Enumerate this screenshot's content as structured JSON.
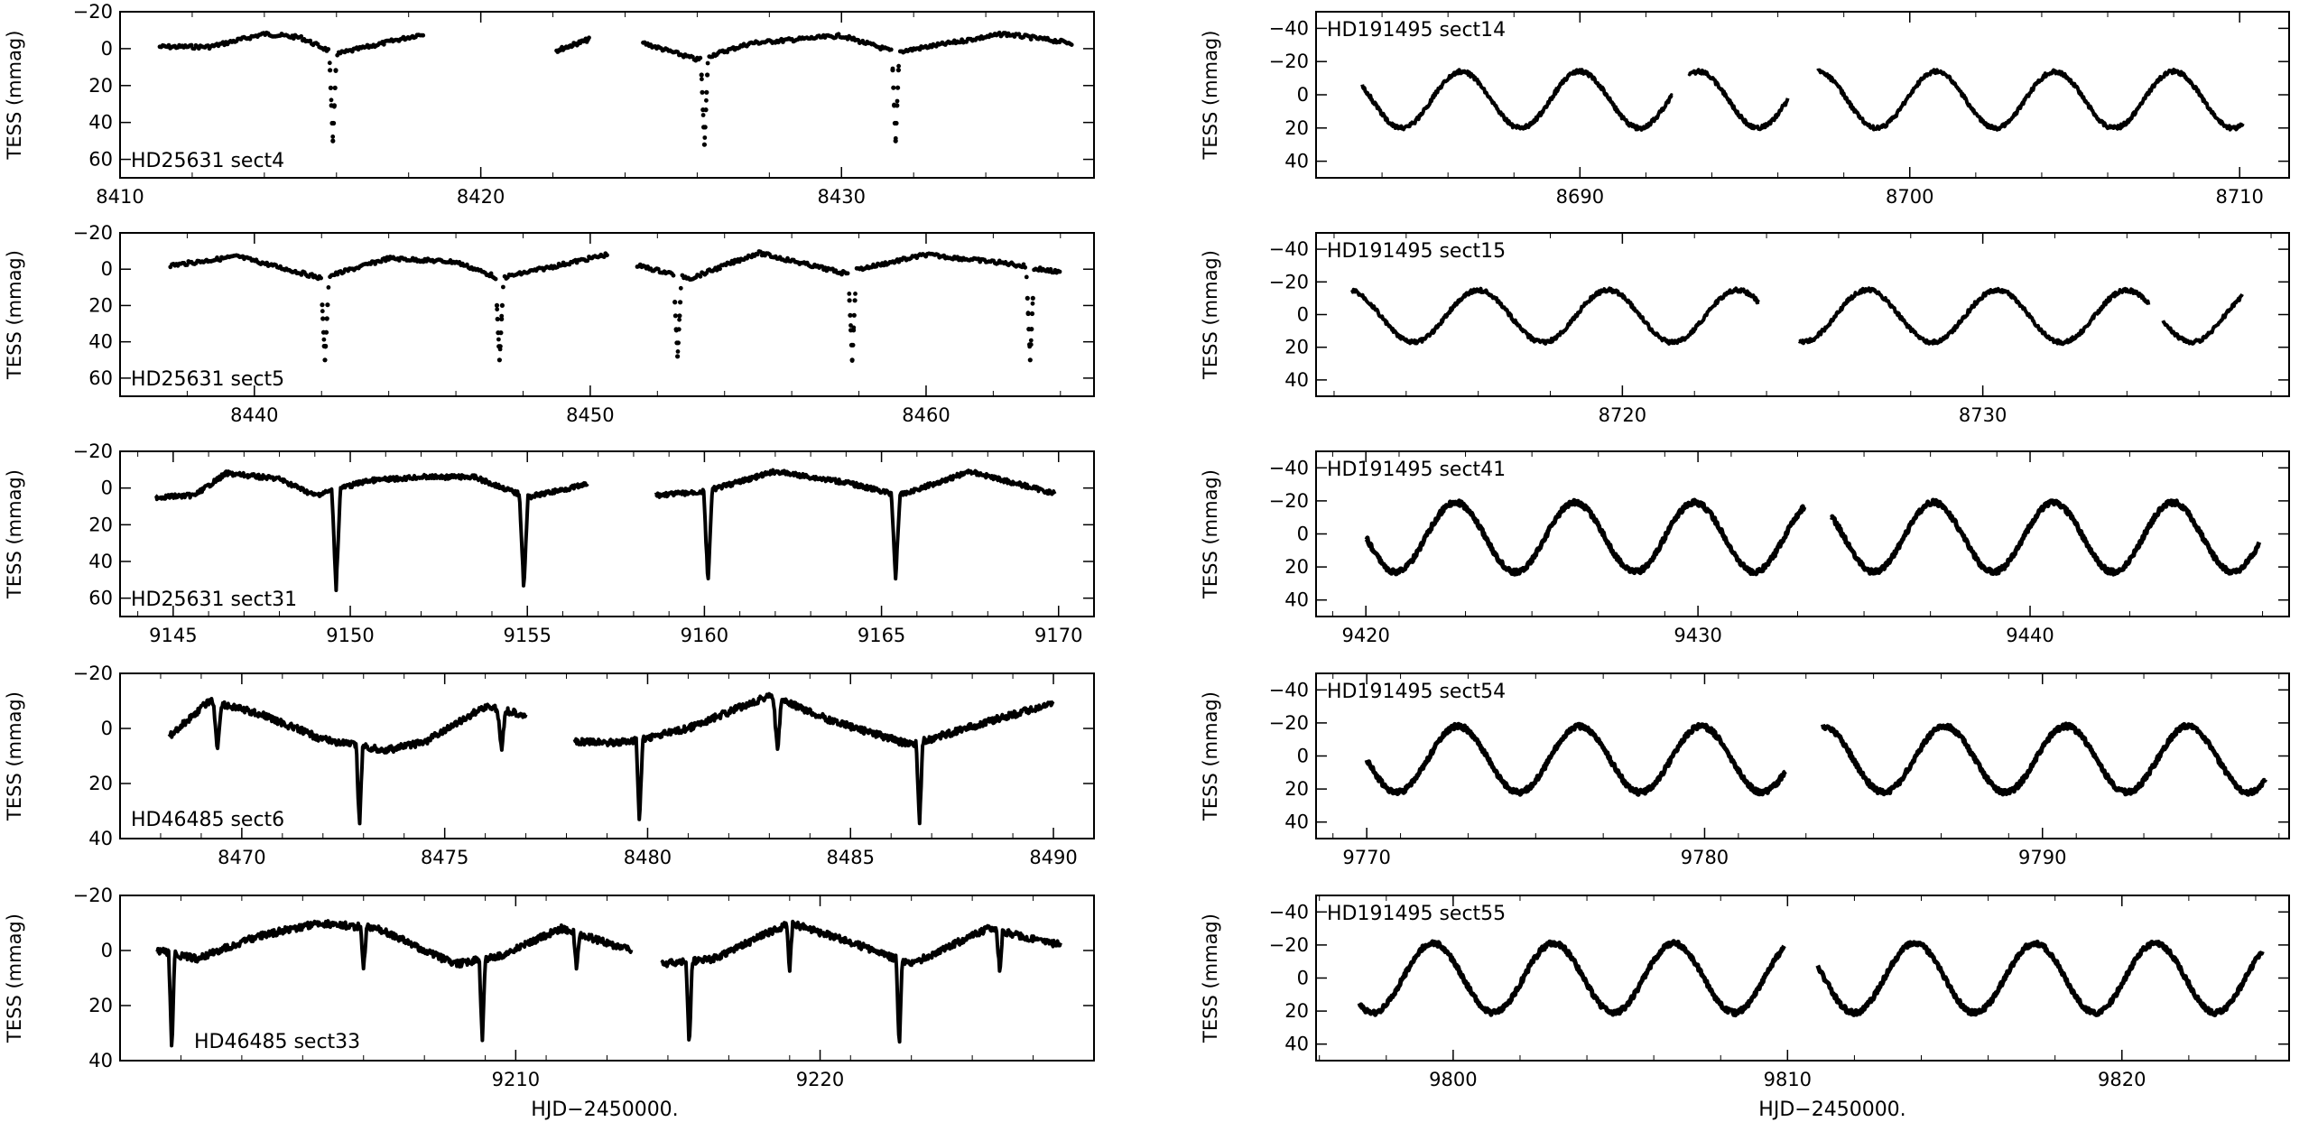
{
  "xlabel": "HJD−2450000.",
  "chart_data": [
    {
      "type": "scatter",
      "title": "HD25631 sect4",
      "ylabel": "TESS (mmag)",
      "xlim": [
        8410,
        8437
      ],
      "ylim": [
        70,
        -20
      ],
      "xticks": [
        8410,
        8420,
        8430
      ],
      "yticks": [
        -20,
        0,
        20,
        40,
        60
      ],
      "segments": [
        [
          8411.1,
          8418.4
        ],
        [
          8422.1,
          8423.0
        ],
        [
          8424.5,
          8436.4
        ]
      ],
      "eclipses": [
        [
          8415.9,
          50,
          0.1
        ],
        [
          8426.2,
          52,
          0.1
        ],
        [
          8431.5,
          50,
          0.1
        ]
      ],
      "baseline": [
        [
          8411,
          -1
        ],
        [
          8412.5,
          -1
        ],
        [
          8414,
          -8
        ],
        [
          8415,
          -6
        ],
        [
          8416,
          3
        ],
        [
          8418.4,
          -8
        ],
        [
          8422.1,
          1
        ],
        [
          8423,
          -5
        ],
        [
          8424.5,
          -3
        ],
        [
          8426,
          6
        ],
        [
          8427.5,
          -3
        ],
        [
          8430,
          -7
        ],
        [
          8431.5,
          2
        ],
        [
          8434.5,
          -8
        ],
        [
          8436.4,
          -3
        ]
      ],
      "style": "dots"
    },
    {
      "type": "scatter",
      "title": "HD25631 sect5",
      "ylabel": "TESS (mmag)",
      "xlim": [
        8436,
        8465
      ],
      "ylim": [
        70,
        -20
      ],
      "xticks": [
        8440,
        8450,
        8460
      ],
      "yticks": [
        -20,
        0,
        20,
        40,
        60
      ],
      "segments": [
        [
          8437.5,
          8450.5
        ],
        [
          8451.4,
          8464
        ]
      ],
      "eclipses": [
        [
          8442.1,
          50,
          0.12
        ],
        [
          8447.3,
          50,
          0.12
        ],
        [
          8452.6,
          48,
          0.12
        ],
        [
          8457.8,
          50,
          0.12
        ],
        [
          8463.1,
          50,
          0.12
        ]
      ],
      "baseline": [
        [
          8437.5,
          -2
        ],
        [
          8439.5,
          -7
        ],
        [
          8442,
          5
        ],
        [
          8444,
          -6
        ],
        [
          8446,
          -4
        ],
        [
          8447.3,
          5
        ],
        [
          8450.5,
          -8
        ],
        [
          8451.4,
          -2
        ],
        [
          8453,
          5
        ],
        [
          8455,
          -9
        ],
        [
          8457.5,
          2
        ],
        [
          8460,
          -8
        ],
        [
          8462.5,
          -3
        ],
        [
          8464,
          2
        ]
      ],
      "style": "dots"
    },
    {
      "type": "line",
      "title": "HD25631 sect31",
      "ylabel": "TESS (mmag)",
      "xlim": [
        9143.5,
        9171
      ],
      "ylim": [
        70,
        -20
      ],
      "xticks": [
        9145,
        9150,
        9155,
        9160,
        9165,
        9170
      ],
      "yticks": [
        -20,
        0,
        20,
        40,
        60
      ],
      "segments": [
        [
          9144.5,
          9156.7
        ],
        [
          9158.6,
          9169.9
        ]
      ],
      "eclipses": [
        [
          9149.6,
          55,
          0.12
        ],
        [
          9154.9,
          55,
          0.12
        ],
        [
          9160.1,
          52,
          0.12
        ],
        [
          9165.4,
          50,
          0.12
        ]
      ],
      "baseline": [
        [
          9144.5,
          5
        ],
        [
          9145.6,
          4
        ],
        [
          9146.5,
          -8
        ],
        [
          9148,
          -5
        ],
        [
          9149,
          4
        ],
        [
          9150.5,
          -4
        ],
        [
          9152,
          -6
        ],
        [
          9153.5,
          -6
        ],
        [
          9155,
          5
        ],
        [
          9156.7,
          -2
        ],
        [
          9158.6,
          4
        ],
        [
          9160,
          2
        ],
        [
          9162,
          -9
        ],
        [
          9164,
          -3
        ],
        [
          9165.5,
          4
        ],
        [
          9167.5,
          -9
        ],
        [
          9169.9,
          3
        ]
      ],
      "style": "line"
    },
    {
      "type": "line",
      "title": "HD46485 sect6",
      "ylabel": "TESS (mmag)",
      "xlim": [
        8467,
        8491
      ],
      "ylim": [
        40,
        -20
      ],
      "xticks": [
        8470,
        8475,
        8480,
        8485,
        8490
      ],
      "yticks": [
        -20,
        0,
        20,
        40
      ],
      "segments": [
        [
          8468.2,
          8477.0
        ],
        [
          8478.2,
          8490.0
        ]
      ],
      "eclipses": [
        [
          8472.9,
          36,
          0.08
        ],
        [
          8479.8,
          35,
          0.08
        ],
        [
          8486.7,
          35,
          0.08
        ]
      ],
      "baseline": [
        [
          8468.2,
          3
        ],
        [
          8469.2,
          -10
        ],
        [
          8470.5,
          -5
        ],
        [
          8472,
          4
        ],
        [
          8473.5,
          8
        ],
        [
          8474.5,
          5
        ],
        [
          8476,
          -8
        ],
        [
          8477,
          -5
        ],
        [
          8478.2,
          5
        ],
        [
          8479.5,
          5
        ],
        [
          8481,
          0
        ],
        [
          8483,
          -12
        ],
        [
          8484.5,
          -3
        ],
        [
          8486.5,
          6
        ],
        [
          8488.5,
          -3
        ],
        [
          8490,
          -9
        ]
      ],
      "dips": [
        [
          8469.4,
          8,
          0.1
        ],
        [
          8476.4,
          8,
          0.1
        ],
        [
          8483.2,
          9,
          0.1
        ]
      ],
      "style": "line"
    },
    {
      "type": "line",
      "title": "HD46485 sect33",
      "ylabel": "TESS (mmag)",
      "xlim": [
        9197,
        9229
      ],
      "ylim": [
        40,
        -20
      ],
      "xticks": [
        9210,
        9220
      ],
      "yticks": [
        -20,
        0,
        20,
        40
      ],
      "segments": [
        [
          9198.2,
          9213.8
        ],
        [
          9214.8,
          9227.9
        ]
      ],
      "eclipses": [
        [
          9198.7,
          36,
          0.1
        ],
        [
          9208.9,
          34,
          0.1
        ],
        [
          9215.7,
          36,
          0.1
        ],
        [
          9222.6,
          36,
          0.1
        ]
      ],
      "baseline": [
        [
          9198.2,
          0
        ],
        [
          9199.5,
          3
        ],
        [
          9201.5,
          -5
        ],
        [
          9203.5,
          -10
        ],
        [
          9205.5,
          -8
        ],
        [
          9207,
          0
        ],
        [
          9208,
          5
        ],
        [
          9209.5,
          2
        ],
        [
          9211.5,
          -8
        ],
        [
          9213.8,
          0
        ],
        [
          9214.8,
          5
        ],
        [
          9216.5,
          3
        ],
        [
          9219,
          -10
        ],
        [
          9221,
          -3
        ],
        [
          9223,
          5
        ],
        [
          9225.5,
          -8
        ],
        [
          9227.9,
          -2
        ]
      ],
      "dips": [
        [
          9205.0,
          8,
          0.1
        ],
        [
          9212.0,
          8,
          0.1
        ],
        [
          9219.0,
          8,
          0.1
        ],
        [
          9225.9,
          8,
          0.1
        ]
      ],
      "style": "line"
    },
    {
      "type": "line",
      "title": "HD191495 sect14",
      "ylabel": "TESS (mmag)",
      "xlim": [
        8682,
        8711.5
      ],
      "ylim": [
        50,
        -50
      ],
      "xticks": [
        8690,
        8700,
        8710
      ],
      "yticks": [
        -40,
        -20,
        0,
        20,
        40
      ],
      "segments": [
        [
          8683.4,
          8692.8
        ],
        [
          8693.3,
          8696.3
        ],
        [
          8697.2,
          8710.1
        ]
      ],
      "sine": {
        "period": 3.6,
        "amplitude": 17,
        "offset": 3,
        "t0": 8684.6
      },
      "style": "line"
    },
    {
      "type": "line",
      "title": "HD191495 sect15",
      "ylabel": "TESS (mmag)",
      "xlim": [
        8711.5,
        8738.5
      ],
      "ylim": [
        50,
        -50
      ],
      "xticks": [
        8720,
        8730
      ],
      "yticks": [
        -40,
        -20,
        0,
        20,
        40
      ],
      "segments": [
        [
          8712.5,
          8723.8
        ],
        [
          8724.9,
          8734.6
        ],
        [
          8735.0,
          8737.2
        ]
      ],
      "sine": {
        "period": 3.6,
        "amplitude": 16,
        "offset": 1,
        "t0": 8714.2
      },
      "style": "line"
    },
    {
      "type": "line",
      "title": "HD191495 sect41",
      "ylabel": "TESS (mmag)",
      "xlim": [
        9418.5,
        9447.8
      ],
      "ylim": [
        50,
        -50
      ],
      "xticks": [
        9420,
        9430,
        9440
      ],
      "yticks": [
        -40,
        -20,
        0,
        20,
        40
      ],
      "segments": [
        [
          9420.0,
          9433.2
        ],
        [
          9434.0,
          9446.9
        ]
      ],
      "sine": {
        "period": 3.6,
        "amplitude": 21,
        "offset": 2,
        "t0": 9420.9
      },
      "style": "thick"
    },
    {
      "type": "line",
      "title": "HD191495 sect54",
      "ylabel": "TESS (mmag)",
      "xlim": [
        9768.5,
        9797.3
      ],
      "ylim": [
        50,
        -50
      ],
      "xticks": [
        9770,
        9780,
        9790
      ],
      "yticks": [
        -40,
        -20,
        0,
        20,
        40
      ],
      "segments": [
        [
          9770.0,
          9782.4
        ],
        [
          9783.5,
          9796.6
        ]
      ],
      "sine": {
        "period": 3.6,
        "amplitude": 20,
        "offset": 2,
        "t0": 9770.9
      },
      "style": "thick"
    },
    {
      "type": "line",
      "title": "HD191495 sect55",
      "ylabel": "TESS (mmag)",
      "xlim": [
        9795.9,
        9825
      ],
      "ylim": [
        50,
        -50
      ],
      "xticks": [
        9800,
        9810,
        9820
      ],
      "yticks": [
        -40,
        -20,
        0,
        20,
        40
      ],
      "segments": [
        [
          9797.2,
          9809.9
        ],
        [
          9810.9,
          9824.2
        ]
      ],
      "sine": {
        "period": 3.6,
        "amplitude": 21,
        "offset": 0,
        "t0": 9797.6
      },
      "style": "thick"
    }
  ]
}
